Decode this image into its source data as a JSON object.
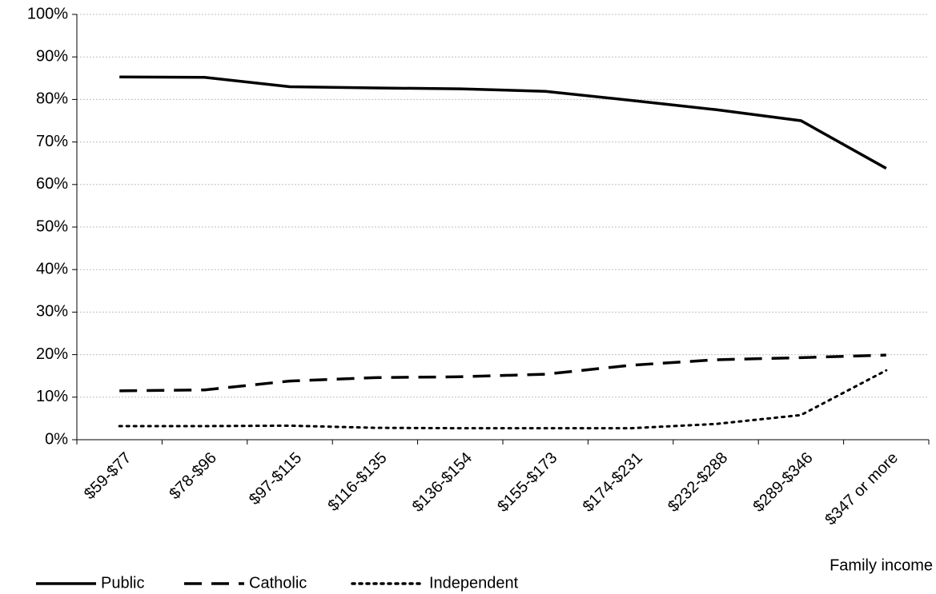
{
  "chart_data": {
    "type": "line",
    "x_label": "Family income",
    "categories": [
      "$59-$77",
      "$78-$96",
      "$97-$115",
      "$116-$135",
      "$136-$154",
      "$155-$173",
      "$174-$231",
      "$232-$288",
      "$289-$346",
      "$347 or more"
    ],
    "series": [
      {
        "name": "Public",
        "color": "#000000",
        "dash": "solid",
        "values": [
          85.3,
          85.2,
          83.0,
          82.7,
          82.5,
          81.9,
          79.8,
          77.6,
          75.0,
          63.8
        ]
      },
      {
        "name": "Catholic",
        "color": "#000000",
        "dash": "dashed",
        "values": [
          11.5,
          11.7,
          13.8,
          14.6,
          14.8,
          15.4,
          17.5,
          18.8,
          19.3,
          19.9
        ]
      },
      {
        "name": "Independent",
        "color": "#000000",
        "dash": "dotted",
        "values": [
          3.2,
          3.2,
          3.3,
          2.8,
          2.7,
          2.7,
          2.7,
          3.7,
          5.8,
          16.3
        ]
      }
    ],
    "ylim": [
      0,
      100
    ],
    "yticks": [
      {
        "value": 0,
        "label": "0%"
      },
      {
        "value": 10,
        "label": "10%"
      },
      {
        "value": 20,
        "label": "20%"
      },
      {
        "value": 30,
        "label": "30%"
      },
      {
        "value": 40,
        "label": "40%"
      },
      {
        "value": 50,
        "label": "50%"
      },
      {
        "value": 60,
        "label": "60%"
      },
      {
        "value": 70,
        "label": "70%"
      },
      {
        "value": 80,
        "label": "80%"
      },
      {
        "value": 90,
        "label": "90%"
      },
      {
        "value": 100,
        "label": "100%"
      }
    ],
    "grid": true,
    "legend": "bottom-left"
  }
}
